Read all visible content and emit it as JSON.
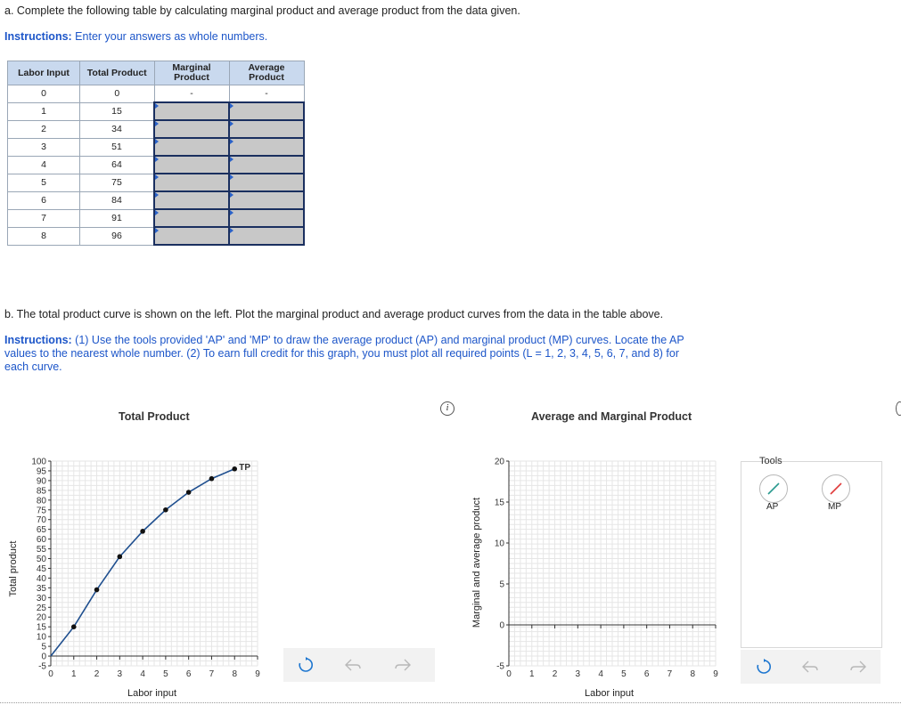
{
  "part_a": {
    "question": "a. Complete the following table by calculating marginal product and average product from the data given.",
    "instructions_label": "Instructions:",
    "instructions_text": " Enter your answers as whole numbers."
  },
  "table": {
    "headers": [
      "Labor Input",
      "Total Product",
      "Marginal Product",
      "Average Product"
    ],
    "first_row": {
      "labor": "0",
      "tp": "0",
      "mp": "-",
      "ap": "-"
    },
    "rows": [
      {
        "labor": "1",
        "tp": "15"
      },
      {
        "labor": "2",
        "tp": "34"
      },
      {
        "labor": "3",
        "tp": "51"
      },
      {
        "labor": "4",
        "tp": "64"
      },
      {
        "labor": "5",
        "tp": "75"
      },
      {
        "labor": "6",
        "tp": "84"
      },
      {
        "labor": "7",
        "tp": "91"
      },
      {
        "labor": "8",
        "tp": "96"
      }
    ]
  },
  "part_b": {
    "question": "b. The total product curve is shown on the left. Plot the marginal product and average product curves from the data in the table above.",
    "instructions_label": "Instructions:",
    "instructions_text": " (1) Use the tools provided 'AP' and 'MP' to draw the average product (AP) and marginal product (MP) curves. Locate the AP values to the nearest whole number. (2) To earn full credit for this graph, you must plot all required points (L = 1, 2, 3, 4, 5, 6, 7, and 8) for each curve."
  },
  "left_chart": {
    "title": "Total Product",
    "xlabel": "Labor input",
    "ylabel": "Total product",
    "series_label": "TP"
  },
  "right_chart": {
    "title": "Average and Marginal Product",
    "xlabel": "Labor input",
    "ylabel": "Marginal and average product"
  },
  "tools": {
    "title": "Tools",
    "ap_label": "AP",
    "mp_label": "MP",
    "ap_color": "#2a9a8f",
    "mp_color": "#e03b3b"
  },
  "info_icon": "i",
  "chart_data": [
    {
      "type": "line",
      "title": "Total Product",
      "xlabel": "Labor input",
      "ylabel": "Total product",
      "x": [
        0,
        1,
        2,
        3,
        4,
        5,
        6,
        7,
        8
      ],
      "series": [
        {
          "name": "TP",
          "values": [
            0,
            15,
            34,
            51,
            64,
            75,
            84,
            91,
            96
          ]
        }
      ],
      "xlim": [
        0,
        9
      ],
      "ylim": [
        -5,
        100
      ],
      "xticks": [
        0,
        1,
        2,
        3,
        4,
        5,
        6,
        7,
        8,
        9
      ],
      "yticks": [
        -5,
        0,
        5,
        10,
        15,
        20,
        25,
        30,
        35,
        40,
        45,
        50,
        55,
        60,
        65,
        70,
        75,
        80,
        85,
        90,
        95,
        100
      ],
      "grid": true
    },
    {
      "type": "line",
      "title": "Average and Marginal Product",
      "xlabel": "Labor input",
      "ylabel": "Marginal and average product",
      "x": [],
      "series": [],
      "xlim": [
        0,
        9
      ],
      "ylim": [
        -5,
        20
      ],
      "xticks": [
        0,
        1,
        2,
        3,
        4,
        5,
        6,
        7,
        8,
        9
      ],
      "yticks": [
        -5,
        0,
        5,
        10,
        15,
        20
      ],
      "grid": true
    }
  ]
}
